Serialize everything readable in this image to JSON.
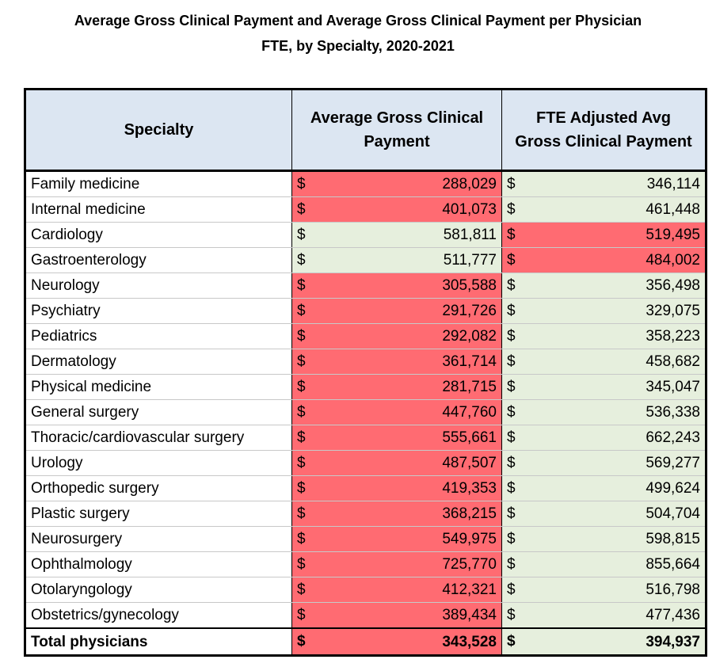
{
  "title": {
    "line1": "Average Gross Clinical Payment and Average Gross Clinical Payment per Physician",
    "line2": "FTE, by Specialty, 2020-2021"
  },
  "headers": {
    "specialty": "Specialty",
    "avg_payment": "Average Gross Clinical Payment",
    "fte_adjusted": "FTE Adjusted Avg Gross Clinical Payment"
  },
  "currency_symbol": "$",
  "colors": {
    "header_bg": "#dce6f2",
    "highlight_red": "#ff6b72",
    "highlight_green": "#e6efdd"
  },
  "rows": [
    {
      "specialty": "Family medicine",
      "avg": "288,029",
      "avg_color": "red",
      "fte": "346,114",
      "fte_color": "green"
    },
    {
      "specialty": "Internal medicine",
      "avg": "401,073",
      "avg_color": "red",
      "fte": "461,448",
      "fte_color": "green"
    },
    {
      "specialty": "Cardiology",
      "avg": "581,811",
      "avg_color": "green",
      "fte": "519,495",
      "fte_color": "red"
    },
    {
      "specialty": "Gastroenterology",
      "avg": "511,777",
      "avg_color": "green",
      "fte": "484,002",
      "fte_color": "red"
    },
    {
      "specialty": "Neurology",
      "avg": "305,588",
      "avg_color": "red",
      "fte": "356,498",
      "fte_color": "green"
    },
    {
      "specialty": "Psychiatry",
      "avg": "291,726",
      "avg_color": "red",
      "fte": "329,075",
      "fte_color": "green"
    },
    {
      "specialty": "Pediatrics",
      "avg": "292,082",
      "avg_color": "red",
      "fte": "358,223",
      "fte_color": "green"
    },
    {
      "specialty": "Dermatology",
      "avg": "361,714",
      "avg_color": "red",
      "fte": "458,682",
      "fte_color": "green"
    },
    {
      "specialty": "Physical medicine",
      "avg": "281,715",
      "avg_color": "red",
      "fte": "345,047",
      "fte_color": "green"
    },
    {
      "specialty": "General surgery",
      "avg": "447,760",
      "avg_color": "red",
      "fte": "536,338",
      "fte_color": "green"
    },
    {
      "specialty": "Thoracic/cardiovascular surgery",
      "avg": "555,661",
      "avg_color": "red",
      "fte": "662,243",
      "fte_color": "green"
    },
    {
      "specialty": "Urology",
      "avg": "487,507",
      "avg_color": "red",
      "fte": "569,277",
      "fte_color": "green"
    },
    {
      "specialty": "Orthopedic surgery",
      "avg": "419,353",
      "avg_color": "red",
      "fte": "499,624",
      "fte_color": "green"
    },
    {
      "specialty": "Plastic surgery",
      "avg": "368,215",
      "avg_color": "red",
      "fte": "504,704",
      "fte_color": "green"
    },
    {
      "specialty": "Neurosurgery",
      "avg": "549,975",
      "avg_color": "red",
      "fte": "598,815",
      "fte_color": "green"
    },
    {
      "specialty": "Ophthalmology",
      "avg": "725,770",
      "avg_color": "red",
      "fte": "855,664",
      "fte_color": "green"
    },
    {
      "specialty": "Otolaryngology",
      "avg": "412,321",
      "avg_color": "red",
      "fte": "516,798",
      "fte_color": "green"
    },
    {
      "specialty": "Obstetrics/gynecology",
      "avg": "389,434",
      "avg_color": "red",
      "fte": "477,436",
      "fte_color": "green"
    }
  ],
  "total": {
    "specialty": "Total physicians",
    "avg": "343,528",
    "avg_color": "red",
    "fte": "394,937",
    "fte_color": "green"
  }
}
